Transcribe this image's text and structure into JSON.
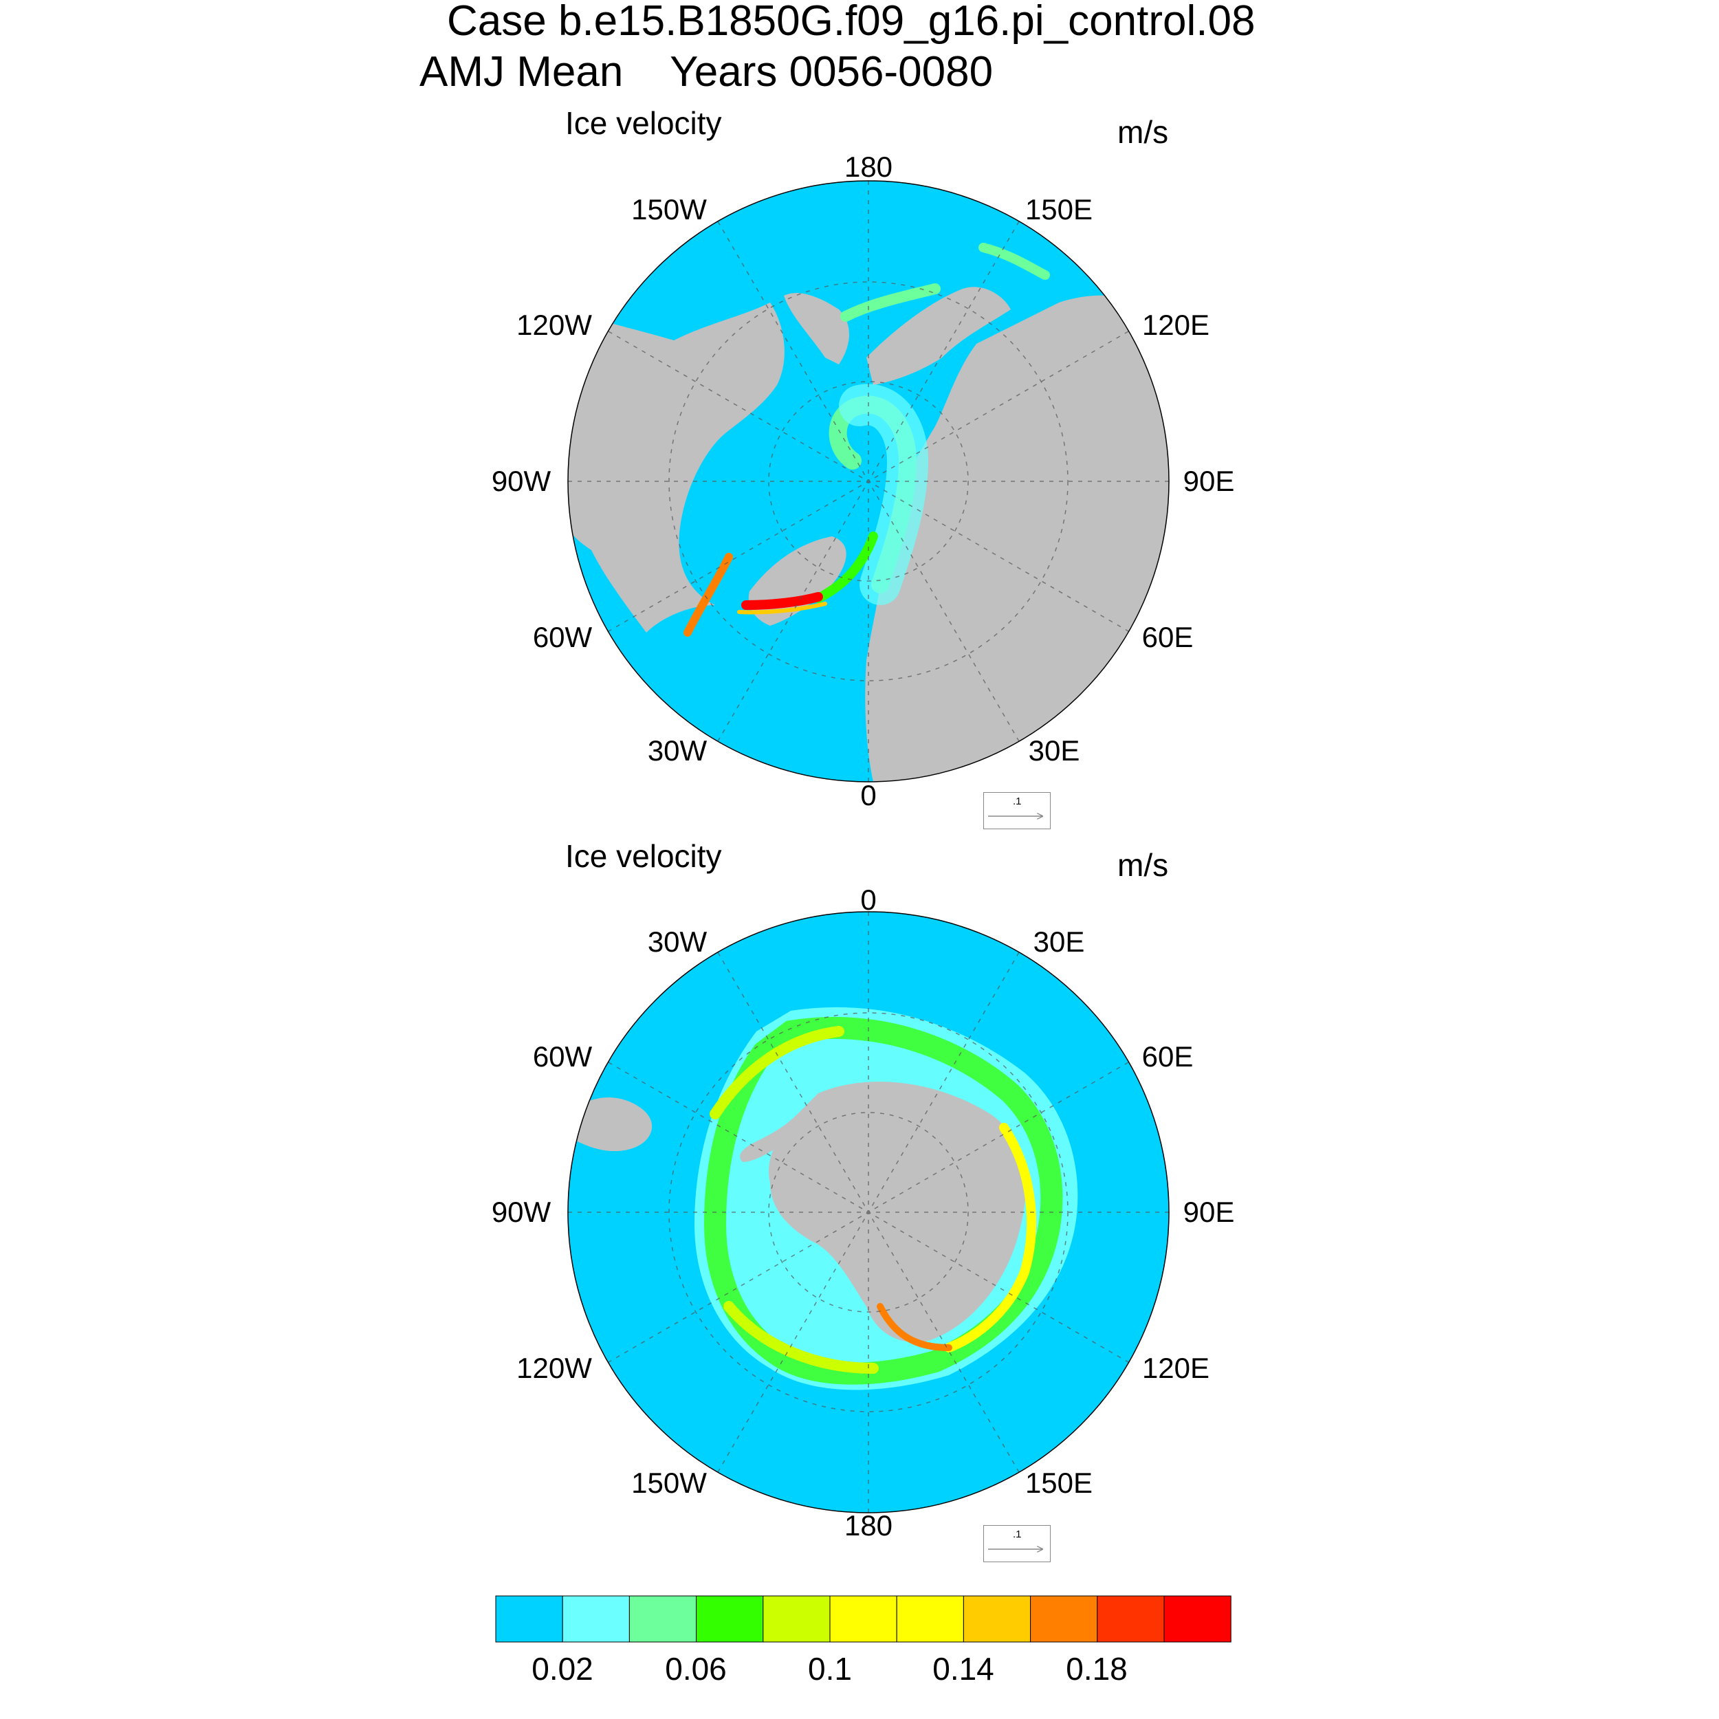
{
  "header": {
    "case_line": "Case b.e15.B1850G.f09_g16.pi_control.08",
    "period_line": "AMJ Mean    Years 0056-0080"
  },
  "panels": [
    {
      "id": "north",
      "title": "Ice velocity",
      "units": "m/s",
      "hemisphere": "NH polar stereographic",
      "lon_labels": [
        "180",
        "150E",
        "120E",
        "90E",
        "60E",
        "30E",
        "0",
        "30W",
        "60W",
        "90W",
        "120W",
        "150W"
      ],
      "reference_vector": ".1"
    },
    {
      "id": "south",
      "title": "Ice velocity",
      "units": "m/s",
      "hemisphere": "SH polar stereographic",
      "lon_labels": [
        "0",
        "30E",
        "60E",
        "90E",
        "120E",
        "150E",
        "180",
        "150W",
        "120W",
        "90W",
        "60W",
        "30W"
      ],
      "reference_vector": ".1"
    }
  ],
  "colorbar": {
    "colors": [
      "#00d2ff",
      "#6cffff",
      "#6cff9c",
      "#33ff00",
      "#ccff00",
      "#ffff00",
      "#ffff00",
      "#ffcc00",
      "#ff7f00",
      "#ff3300",
      "#ff0000"
    ],
    "tick_labels": [
      "0.02",
      "0.06",
      "0.1",
      "0.14",
      "0.18"
    ]
  },
  "legend": {
    "ocean_color": "#00d2ff",
    "land_color": "#c0c0c0"
  }
}
